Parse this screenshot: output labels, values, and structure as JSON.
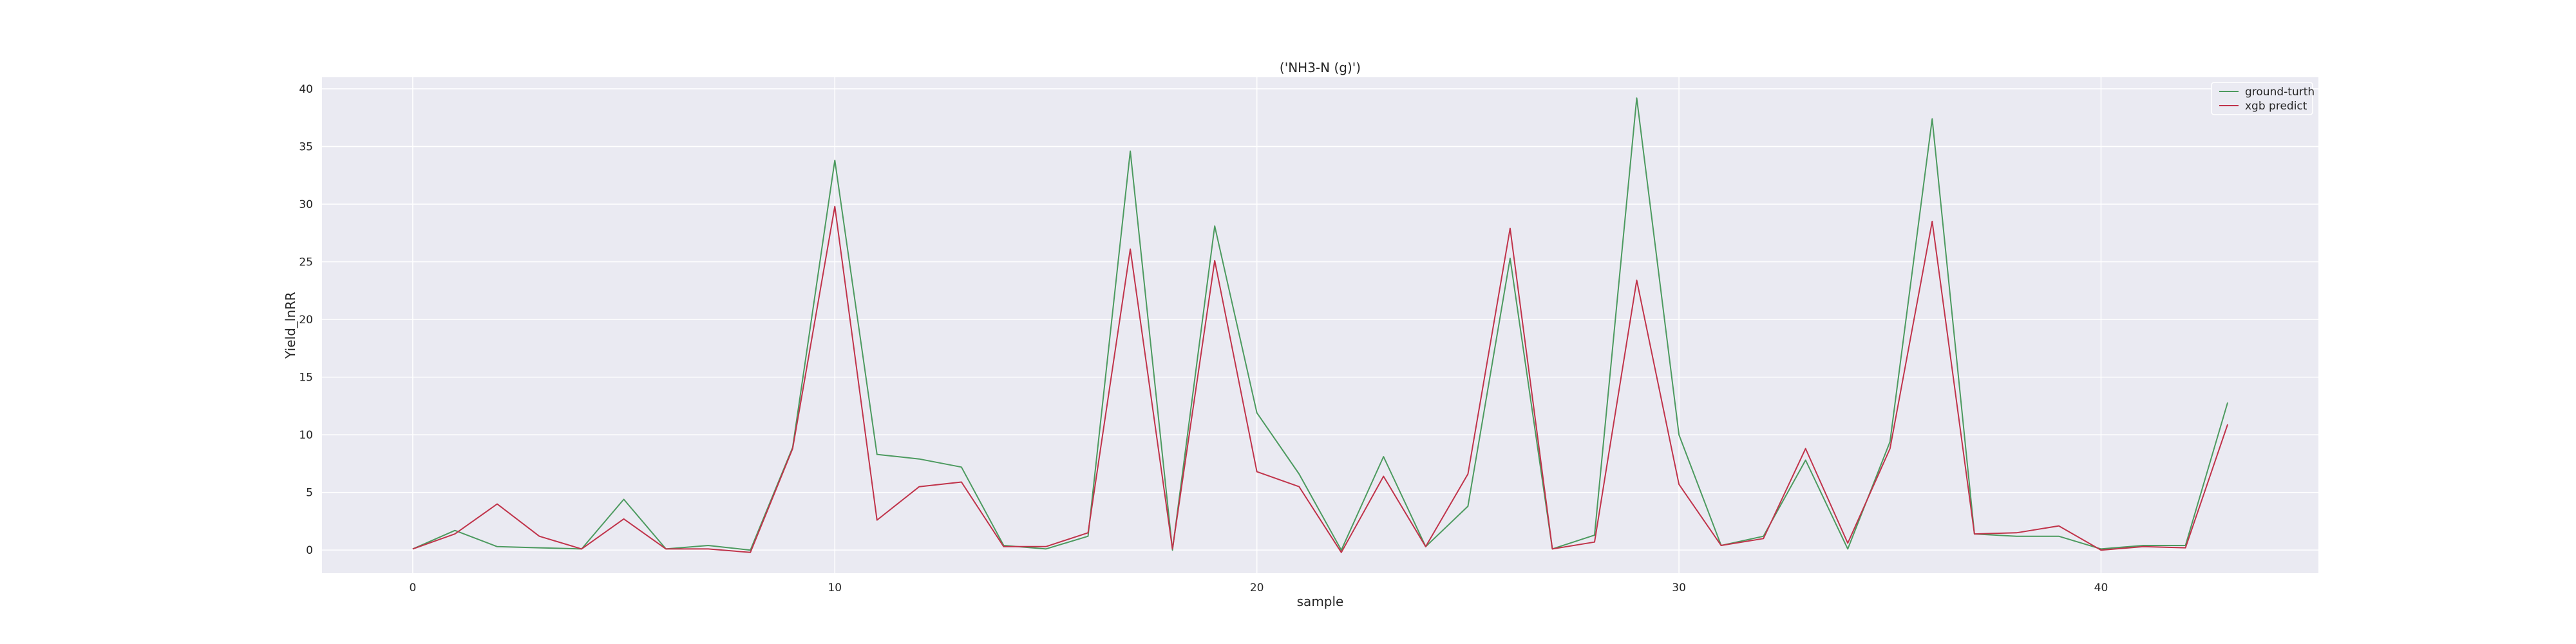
{
  "chart_data": {
    "type": "line",
    "title": "('NH3-N (g)')",
    "xlabel": "sample",
    "ylabel": "Yield_lnRR",
    "xlim": [
      -2.15,
      45.15
    ],
    "ylim": [
      -2.0,
      41.0
    ],
    "xticks": [
      0,
      10,
      20,
      30,
      40
    ],
    "yticks": [
      0,
      5,
      10,
      15,
      20,
      25,
      30,
      35,
      40
    ],
    "grid": true,
    "legend_position": "top-right",
    "x": [
      0,
      1,
      2,
      3,
      4,
      5,
      6,
      7,
      8,
      9,
      10,
      11,
      12,
      13,
      14,
      15,
      16,
      17,
      18,
      19,
      20,
      21,
      22,
      23,
      24,
      25,
      26,
      27,
      28,
      29,
      30,
      31,
      32,
      33,
      34,
      35,
      36,
      37,
      38,
      39,
      40,
      41,
      42,
      43
    ],
    "series": [
      {
        "name": "ground-turth",
        "color": "#4c9a5f",
        "values": [
          0.1,
          1.7,
          0.3,
          0.2,
          0.1,
          4.4,
          0.1,
          0.4,
          0.0,
          8.9,
          33.8,
          8.3,
          7.9,
          7.2,
          0.4,
          0.1,
          1.2,
          34.6,
          0.0,
          28.1,
          11.9,
          6.6,
          0.0,
          8.1,
          0.3,
          3.8,
          25.3,
          0.1,
          1.3,
          39.2,
          10.0,
          0.4,
          1.2,
          7.8,
          0.1,
          9.4,
          37.4,
          1.4,
          1.2,
          1.2,
          0.1,
          0.4,
          0.4,
          12.8
        ]
      },
      {
        "name": "xgb predict",
        "color": "#c0334a",
        "values": [
          0.1,
          1.4,
          4.0,
          1.2,
          0.1,
          2.7,
          0.1,
          0.1,
          -0.2,
          8.8,
          29.8,
          2.6,
          5.5,
          5.9,
          0.3,
          0.3,
          1.5,
          26.1,
          0.1,
          25.1,
          6.8,
          5.5,
          -0.2,
          6.4,
          0.3,
          6.6,
          27.9,
          0.1,
          0.7,
          23.4,
          5.7,
          0.4,
          1.0,
          8.8,
          0.6,
          8.8,
          28.5,
          1.4,
          1.5,
          2.1,
          0.0,
          0.3,
          0.2,
          10.9
        ]
      }
    ]
  }
}
